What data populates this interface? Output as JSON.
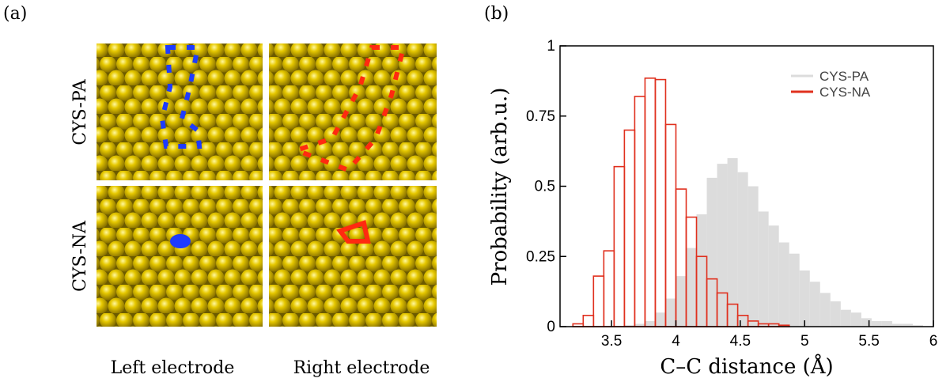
{
  "panel_a": {
    "label": "(a)",
    "rows": [
      "CYS-PA",
      "CYS-NA"
    ],
    "columns": [
      "Left electrode",
      "Right electrode"
    ]
  },
  "chart_data": {
    "type": "histogram",
    "panel_label": "(b)",
    "xlabel": "C–C distance (Å)",
    "ylabel": "Probability (arb.u.)",
    "xlim": [
      3.1,
      6
    ],
    "xticks": [
      3.5,
      4,
      4.5,
      5,
      5.5,
      6
    ],
    "ylim": [
      0,
      1
    ],
    "yticks": [
      0,
      0.25,
      0.5,
      0.75,
      1
    ],
    "legend": "upper right",
    "series": [
      {
        "name": "CYS-PA",
        "color": "#dcdcdc",
        "filled": true,
        "bins": [
          3.6,
          3.68,
          3.76,
          3.84,
          3.92,
          4.0,
          4.08,
          4.16,
          4.24,
          4.32,
          4.4,
          4.48,
          4.56,
          4.64,
          4.72,
          4.8,
          4.88,
          4.96,
          5.04,
          5.12,
          5.2,
          5.28,
          5.36,
          5.44,
          5.52,
          5.6,
          5.68,
          5.76,
          5.84,
          5.92
        ],
        "values": [
          0.005,
          0.01,
          0.02,
          0.05,
          0.1,
          0.18,
          0.28,
          0.4,
          0.53,
          0.58,
          0.6,
          0.55,
          0.5,
          0.41,
          0.36,
          0.3,
          0.26,
          0.2,
          0.16,
          0.12,
          0.09,
          0.06,
          0.05,
          0.03,
          0.02,
          0.02,
          0.01,
          0.01,
          0.005
        ]
      },
      {
        "name": "CYS-NA",
        "color": "#e0301e",
        "filled": false,
        "bins": [
          3.2,
          3.28,
          3.36,
          3.44,
          3.52,
          3.6,
          3.68,
          3.76,
          3.84,
          3.92,
          4.0,
          4.08,
          4.16,
          4.24,
          4.32,
          4.4,
          4.48,
          4.56,
          4.64,
          4.72,
          4.8,
          4.88
        ],
        "values": [
          0.01,
          0.04,
          0.18,
          0.27,
          0.57,
          0.7,
          0.82,
          0.885,
          0.88,
          0.72,
          0.49,
          0.39,
          0.25,
          0.17,
          0.12,
          0.08,
          0.04,
          0.02,
          0.01,
          0.01,
          0.005
        ]
      }
    ]
  }
}
